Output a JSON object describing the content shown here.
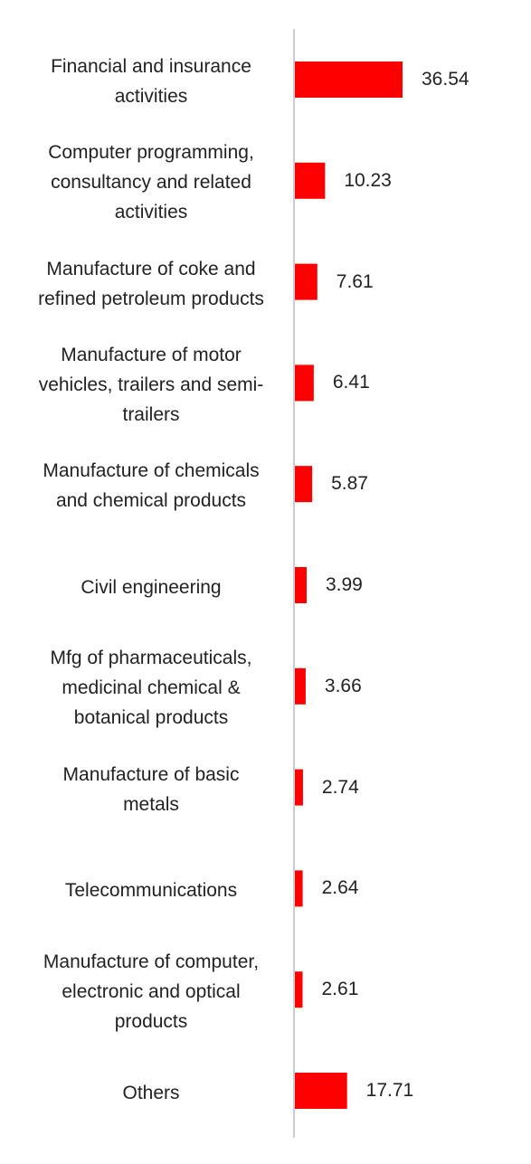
{
  "chart_data": {
    "type": "bar",
    "orientation": "horizontal",
    "categories": [
      "Financial and insurance\nactivities",
      "Computer programming,\nconsultancy and related\nactivities",
      "Manufacture of coke and\nrefined petroleum products",
      "Manufacture of motor\nvehicles, trailers and semi-\ntrailers",
      "Manufacture of chemicals\nand chemical products",
      "Civil engineering",
      "Mfg of pharmaceuticals,\nmedicinal chemical &\nbotanical products",
      "Manufacture of basic\nmetals",
      "Telecommunications",
      "Manufacture of computer,\nelectronic and optical\nproducts",
      "Others"
    ],
    "values": [
      36.54,
      10.23,
      7.61,
      6.41,
      5.87,
      3.99,
      3.66,
      2.74,
      2.64,
      2.61,
      17.71
    ],
    "value_labels": [
      "36.54",
      "10.23",
      "7.61",
      "6.41",
      "5.87",
      "3.99",
      "3.66",
      "2.74",
      "2.64",
      "2.61",
      "17.71"
    ],
    "title": "",
    "xlabel": "",
    "ylabel": "",
    "xlim": [
      0,
      36.54
    ],
    "grid": false,
    "colors": {
      "bar": "#ff0000",
      "axis": "#cccccc",
      "text": "#222222"
    }
  }
}
